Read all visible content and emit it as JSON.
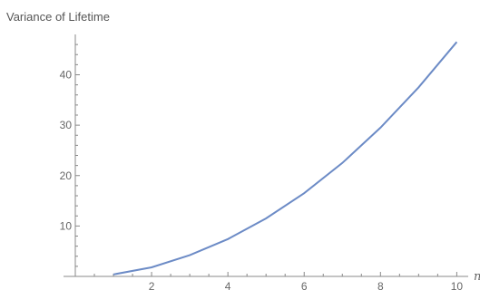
{
  "chart_data": {
    "type": "line",
    "title": "Variance of Lifetime",
    "xlabel": "n",
    "ylabel": "",
    "xlim": [
      0.0,
      10.3
    ],
    "ylim": [
      0,
      48
    ],
    "x_ticks": [
      2,
      4,
      6,
      8,
      10
    ],
    "y_ticks": [
      10,
      20,
      30,
      40
    ],
    "grid": false,
    "series": [
      {
        "color": "#6c8bc6",
        "x": [
          1,
          2,
          3,
          4,
          5,
          6,
          7,
          8,
          9,
          10
        ],
        "values": [
          0.4,
          1.8,
          4.2,
          7.4,
          11.5,
          16.5,
          22.5,
          29.5,
          37.5,
          46.5
        ]
      }
    ]
  }
}
